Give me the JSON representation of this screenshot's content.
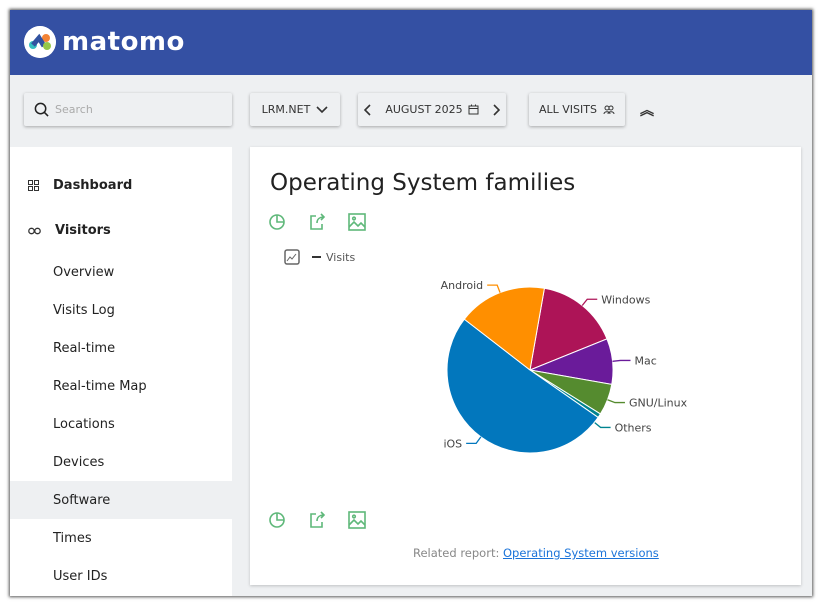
{
  "header": {
    "logo_text": "matomo"
  },
  "toolbar": {
    "search_placeholder": "Search",
    "site": "LRM.NET",
    "date": "AUGUST 2025",
    "segment": "ALL VISITS"
  },
  "sidebar": {
    "items": [
      {
        "label": "Dashboard",
        "type": "header",
        "icon": "grid-icon"
      },
      {
        "label": "Visitors",
        "type": "header",
        "icon": "glasses-icon"
      },
      {
        "label": "Overview"
      },
      {
        "label": "Visits Log"
      },
      {
        "label": "Real-time"
      },
      {
        "label": "Real-time Map"
      },
      {
        "label": "Locations"
      },
      {
        "label": "Devices"
      },
      {
        "label": "Software",
        "active": true
      },
      {
        "label": "Times"
      },
      {
        "label": "User IDs"
      }
    ]
  },
  "report": {
    "title": "Operating System families",
    "legend": "Visits",
    "related_prefix": "Related report:",
    "related_link": "Operating System versions"
  },
  "chart_data": {
    "type": "pie",
    "series_name": "Visits",
    "unit": "percent (estimated share)",
    "slices": [
      {
        "label": "Windows",
        "value": 16.1,
        "color": "#ad1457"
      },
      {
        "label": "Mac",
        "value": 8.9,
        "color": "#6a1b9a"
      },
      {
        "label": "GNU/Linux",
        "value": 6.1,
        "color": "#558b2f"
      },
      {
        "label": "Others",
        "value": 0.8,
        "color": "#00838f"
      },
      {
        "label": "iOS",
        "value": 50.8,
        "color": "#0277bd"
      },
      {
        "label": "Android",
        "value": 17.3,
        "color": "#ff8f00"
      }
    ]
  }
}
